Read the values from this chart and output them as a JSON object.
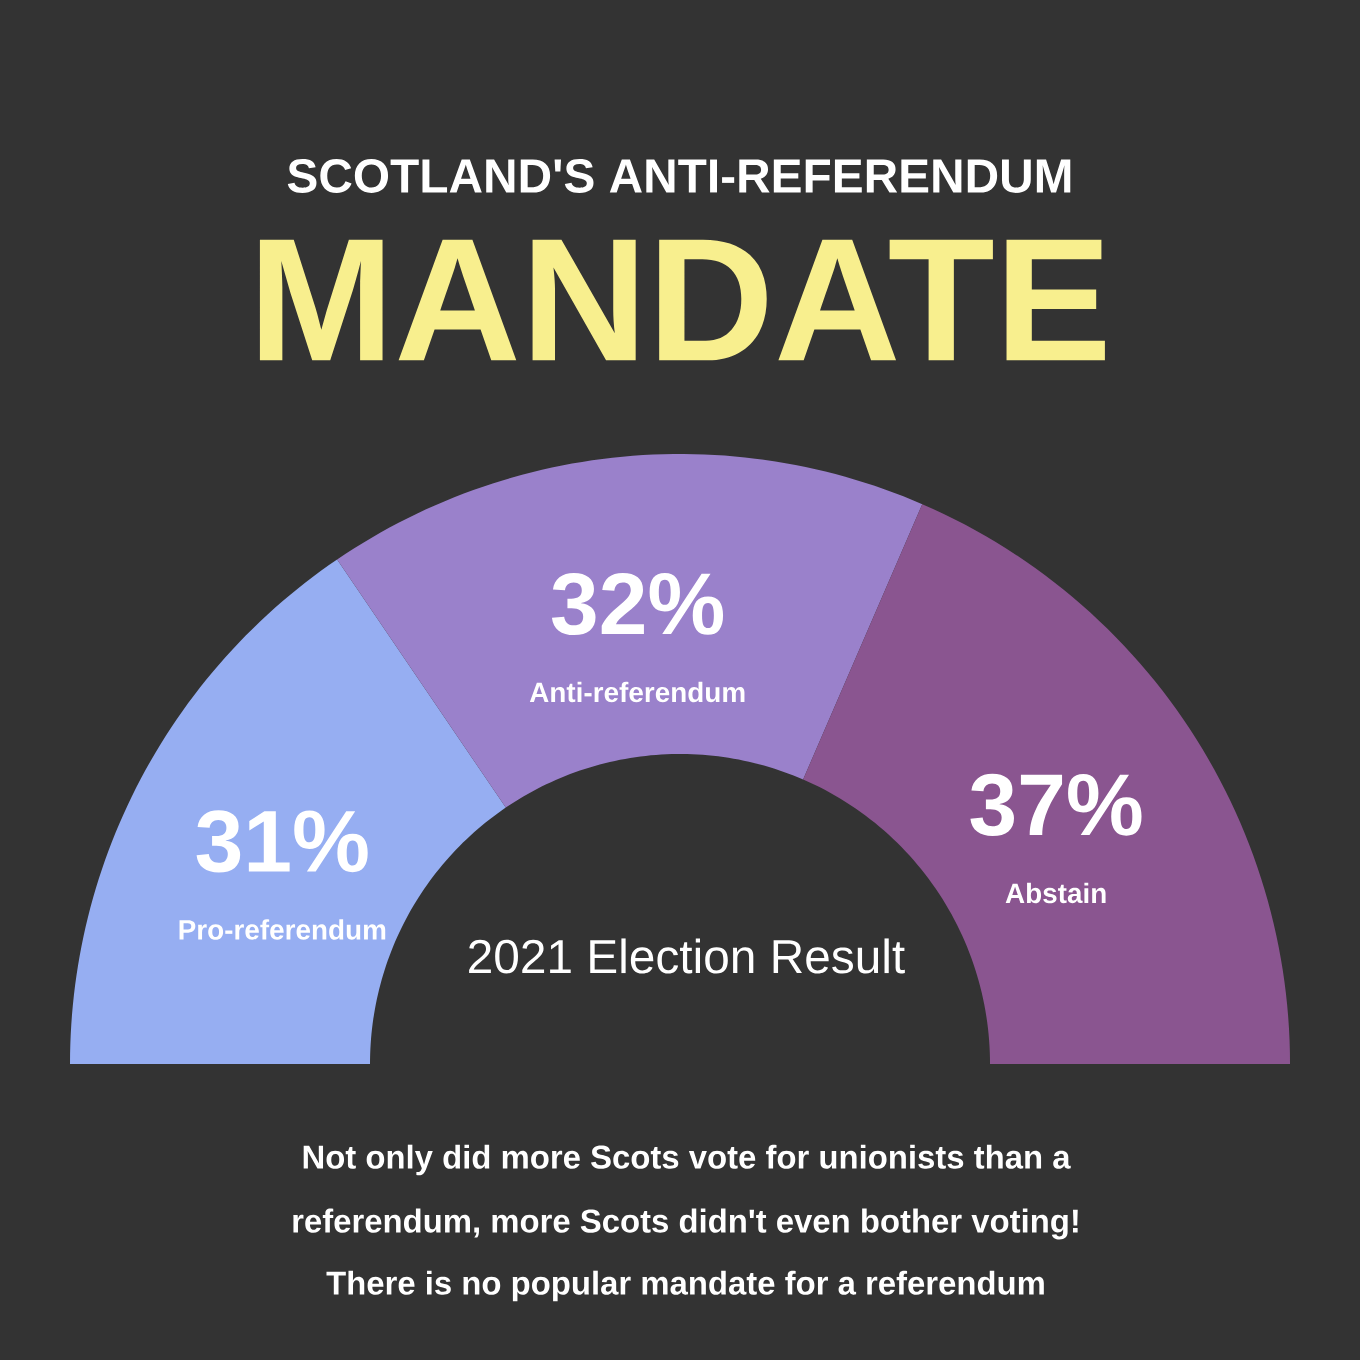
{
  "chart_data": {
    "type": "donut",
    "title": "SCOTLAND'S ANTI-REFERENDUM",
    "subtitle": "MANDATE",
    "categories": [
      "Pro-referendum",
      "Anti-referendum",
      "Abstain"
    ],
    "values": [
      31,
      32,
      37
    ],
    "colors": [
      "#96aef2",
      "#9a81cb",
      "#8a5590"
    ],
    "value_labels": [
      "31%",
      "32%",
      "37%"
    ],
    "annotations": [
      "2021 Election Result",
      "Not only did more Scots vote for unionists than a",
      "referendum, more Scots didn't even bother voting!",
      "There is no popular mandate for a referendum"
    ]
  }
}
